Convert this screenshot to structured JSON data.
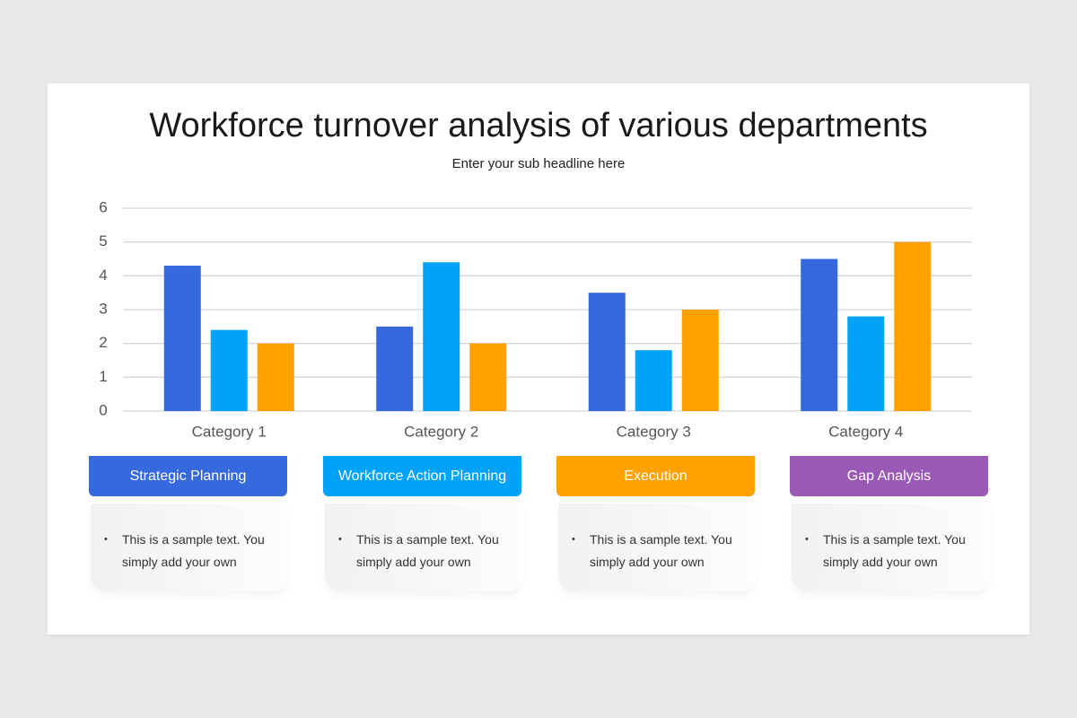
{
  "chart_data": {
    "type": "bar",
    "title": "Workforce turnover analysis of various departments",
    "subtitle": "Enter your sub headline here",
    "categories": [
      "Category 1",
      "Category 2",
      "Category 3",
      "Category 4"
    ],
    "series": [
      {
        "color": "#3569dd",
        "values": [
          4.3,
          2.5,
          3.5,
          4.5
        ]
      },
      {
        "color": "#00a3f7",
        "values": [
          2.4,
          4.4,
          1.8,
          2.8
        ]
      },
      {
        "color": "#ffa200",
        "values": [
          2.0,
          2.0,
          3.0,
          5.0
        ]
      }
    ],
    "ylim": [
      0,
      6
    ],
    "yticks": [
      0,
      1,
      2,
      3,
      4,
      5,
      6
    ],
    "grid": true
  },
  "cards": [
    {
      "title": "Strategic Planning",
      "color": "#3569dd",
      "text": "This is a sample text. You simply add your own"
    },
    {
      "title": "Workforce Action Planning",
      "color": "#00a3f7",
      "text": "This is a sample text. You simply add your own"
    },
    {
      "title": "Execution",
      "color": "#ffa200",
      "text": "This is a sample text. You simply add your own"
    },
    {
      "title": "Gap Analysis",
      "color": "#9b59b6",
      "text": "This is a sample text. You simply add your own"
    }
  ]
}
